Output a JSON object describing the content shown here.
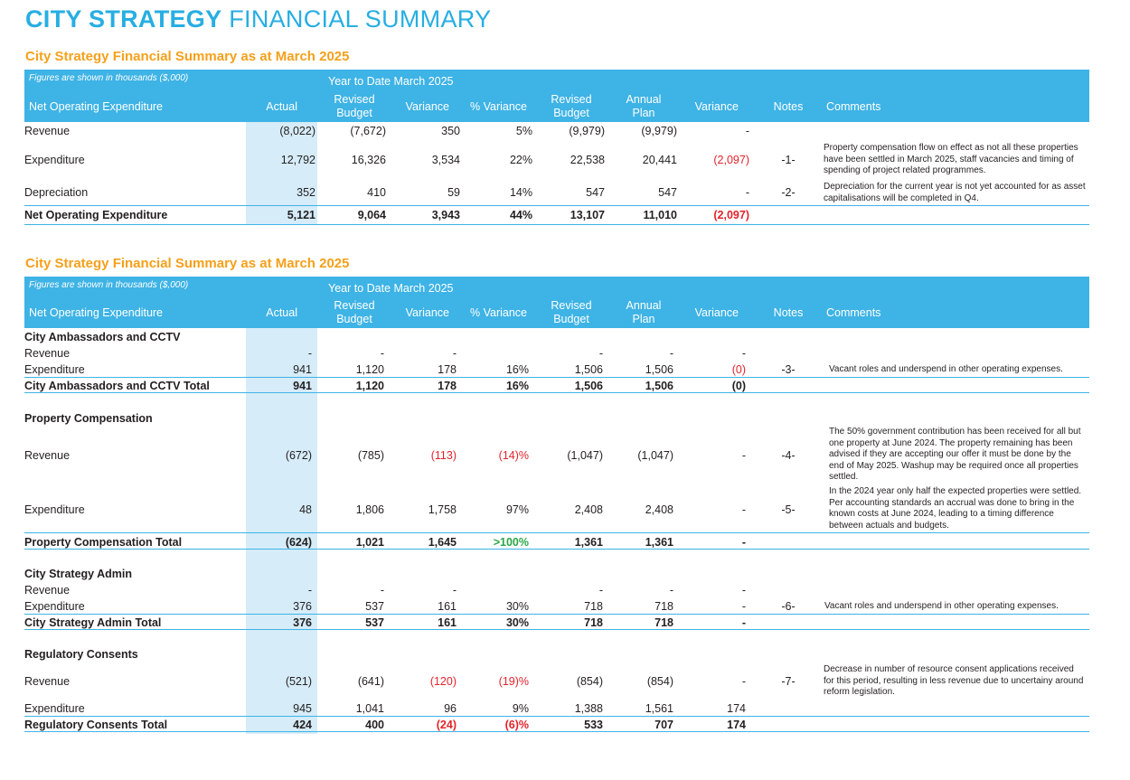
{
  "page_title": {
    "bold": "CITY STRATEGY",
    "light": "FINANCIAL SUMMARY"
  },
  "table1": {
    "title": "City Strategy Financial Summary as at March 2025",
    "figures_note": "Figures are shown in thousands ($,000)",
    "ytd": "Year to Date March 2025",
    "headers": {
      "label": "Net Operating Expenditure",
      "actual": "Actual",
      "revised_budget": "Revised Budget",
      "variance": "Variance",
      "pct_variance": "% Variance",
      "revised_budget2": "Revised Budget",
      "annual_plan": "Annual Plan",
      "variance2": "Variance",
      "notes": "Notes",
      "comments": "Comments"
    },
    "rows": [
      {
        "label": "Revenue",
        "actual": "(8,022)",
        "rb": "(7,672)",
        "var": "350",
        "pct": "5%",
        "rb2": "(9,979)",
        "ap": "(9,979)",
        "var2": "-",
        "note": "",
        "comment": ""
      },
      {
        "label": "Expenditure",
        "actual": "12,792",
        "rb": "16,326",
        "var": "3,534",
        "pct": "22%",
        "rb2": "22,538",
        "ap": "20,441",
        "var2": "(2,097)",
        "note": "-1-",
        "comment": "Property compensation flow on effect as not all these properties have been settled in March 2025, staff vacancies and timing of spending of project related programmes."
      },
      {
        "label": "Depreciation",
        "actual": "352",
        "rb": "410",
        "var": "59",
        "pct": "14%",
        "rb2": "547",
        "ap": "547",
        "var2": "-",
        "note": "-2-",
        "comment": "Depreciation for the current year is not yet accounted for as asset capitalisations will be completed in Q4."
      },
      {
        "label": "Net Operating Expenditure",
        "actual": "5,121",
        "rb": "9,064",
        "var": "3,943",
        "pct": "44%",
        "rb2": "13,107",
        "ap": "11,010",
        "var2": "(2,097)",
        "note": "",
        "comment": ""
      }
    ]
  },
  "table2": {
    "title": "City Strategy Financial Summary as at March 2025",
    "figures_note": "Figures are shown in thousands ($,000)",
    "ytd": "Year to Date March 2025",
    "headers": {
      "label": "Net Operating Expenditure",
      "actual": "Actual",
      "revised_budget": "Revised Budget",
      "variance": "Variance",
      "pct_variance": "% Variance",
      "revised_budget2": "Revised Budget",
      "annual_plan": "Annual Plan",
      "variance2": "Variance",
      "notes": "Notes",
      "comments": "Comments"
    },
    "groups": [
      {
        "name": "City Ambassadors and CCTV",
        "rows": [
          {
            "label": "Revenue",
            "actual": "-",
            "rb": "-",
            "var": "-",
            "pct": "",
            "rb2": "-",
            "ap": "-",
            "var2": "-",
            "note": "",
            "comment": ""
          },
          {
            "label": "Expenditure",
            "actual": "941",
            "rb": "1,120",
            "var": "178",
            "pct": "16%",
            "rb2": "1,506",
            "ap": "1,506",
            "var2": "(0)",
            "note": "-3-",
            "comment": "Vacant roles and underspend in other operating expenses."
          }
        ],
        "total": {
          "label": "City Ambassadors and CCTV Total",
          "actual": "941",
          "rb": "1,120",
          "var": "178",
          "pct": "16%",
          "rb2": "1,506",
          "ap": "1,506",
          "var2": "(0)"
        }
      },
      {
        "name": "Property Compensation",
        "rows": [
          {
            "label": "Revenue",
            "actual": "(672)",
            "rb": "(785)",
            "var": "(113)",
            "pct": "(14)%",
            "rb2": "(1,047)",
            "ap": "(1,047)",
            "var2": "-",
            "note": "-4-",
            "comment": "The 50% government contribution has been received for all but one property at June 2024. The property remaining has been advised if they are accepting our offer it must be done by the end of May 2025. Washup may be required once all properties settled."
          },
          {
            "label": "Expenditure",
            "actual": "48",
            "rb": "1,806",
            "var": "1,758",
            "pct": "97%",
            "rb2": "2,408",
            "ap": "2,408",
            "var2": "-",
            "note": "-5-",
            "comment": "In the 2024 year only half the expected properties were settled. Per accounting standards an accrual was done to bring in the known costs at June 2024, leading to a timing difference between actuals and budgets."
          }
        ],
        "total": {
          "label": "Property Compensation Total",
          "actual": "(624)",
          "rb": "1,021",
          "var": "1,645",
          "pct": ">100%",
          "rb2": "1,361",
          "ap": "1,361",
          "var2": "-"
        }
      },
      {
        "name": "City Strategy Admin",
        "rows": [
          {
            "label": "Revenue",
            "actual": "-",
            "rb": "-",
            "var": "-",
            "pct": "",
            "rb2": "-",
            "ap": "-",
            "var2": "-",
            "note": "",
            "comment": ""
          },
          {
            "label": "Expenditure",
            "actual": "376",
            "rb": "537",
            "var": "161",
            "pct": "30%",
            "rb2": "718",
            "ap": "718",
            "var2": "-",
            "note": "-6-",
            "comment": "Vacant roles and underspend in other operating expenses."
          }
        ],
        "total": {
          "label": "City Strategy Admin Total",
          "actual": "376",
          "rb": "537",
          "var": "161",
          "pct": "30%",
          "rb2": "718",
          "ap": "718",
          "var2": "-"
        }
      },
      {
        "name": "Regulatory Consents",
        "rows": [
          {
            "label": "Revenue",
            "actual": "(521)",
            "rb": "(641)",
            "var": "(120)",
            "pct": "(19)%",
            "rb2": "(854)",
            "ap": "(854)",
            "var2": "-",
            "note": "-7-",
            "comment": "Decrease in number of resource consent applications received for this period, resulting in less revenue due to uncertainy around reform legislation."
          },
          {
            "label": "Expenditure",
            "actual": "945",
            "rb": "1,041",
            "var": "96",
            "pct": "9%",
            "rb2": "1,388",
            "ap": "1,561",
            "var2": "174",
            "note": "",
            "comment": ""
          }
        ],
        "total": {
          "label": "Regulatory Consents Total",
          "actual": "424",
          "rb": "400",
          "var": "(24)",
          "pct": "(6)%",
          "rb2": "533",
          "ap": "707",
          "var2": "174"
        }
      }
    ]
  },
  "colors": {
    "header_bg": "#3eb3e5",
    "title_blue": "#27aee2",
    "section_orange": "#f5a01a",
    "negative_red": "#e3232b",
    "positive_green": "#29a745",
    "actual_band": "#d6ecf8"
  }
}
